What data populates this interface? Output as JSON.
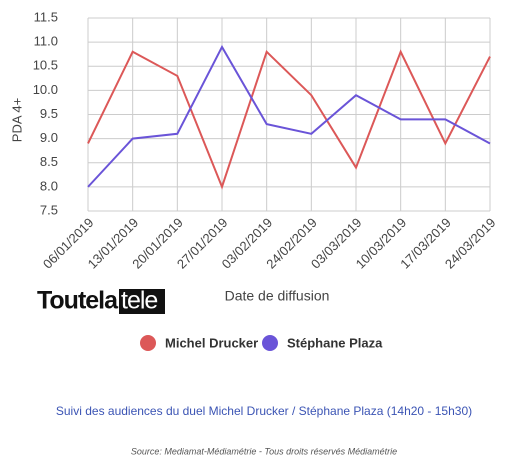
{
  "chart_data": {
    "type": "line",
    "y_label": "PDA 4+",
    "x_label": "Date de diffusion",
    "categories": [
      "06/01/2019",
      "13/01/2019",
      "20/01/2019",
      "27/01/2019",
      "03/02/2019",
      "24/02/2019",
      "03/03/2019",
      "10/03/2019",
      "17/03/2019",
      "24/03/2019"
    ],
    "series": [
      {
        "name": "Michel Drucker",
        "color": "#dc5858",
        "values": [
          8.9,
          10.8,
          10.3,
          8.0,
          10.8,
          9.9,
          8.4,
          10.8,
          8.9,
          10.7
        ]
      },
      {
        "name": "Stéphane Plaza",
        "color": "#6a54d8",
        "values": [
          8.0,
          9.0,
          9.1,
          10.9,
          9.3,
          9.1,
          9.9,
          9.4,
          9.4,
          8.9
        ]
      }
    ],
    "ylim": [
      7.5,
      11.5
    ],
    "yticks": [
      7.5,
      {
        "value": 8,
        "label": "8.0"
      },
      8.5,
      {
        "value": 9,
        "label": "9.0"
      },
      9.5,
      {
        "value": 10,
        "label": "10.0"
      },
      10.5,
      {
        "value": 11,
        "label": "11.0"
      },
      11.5
    ],
    "grid": true,
    "caption": "Suivi des audiences du duel Michel Drucker / Stéphane Plaza (14h20 - 15h30)",
    "source": "Source: Mediamat-Médiamétrie - Tous droits réservés Médiamétrie"
  },
  "logo": {
    "part1": "Toutela",
    "part2": "tele"
  }
}
